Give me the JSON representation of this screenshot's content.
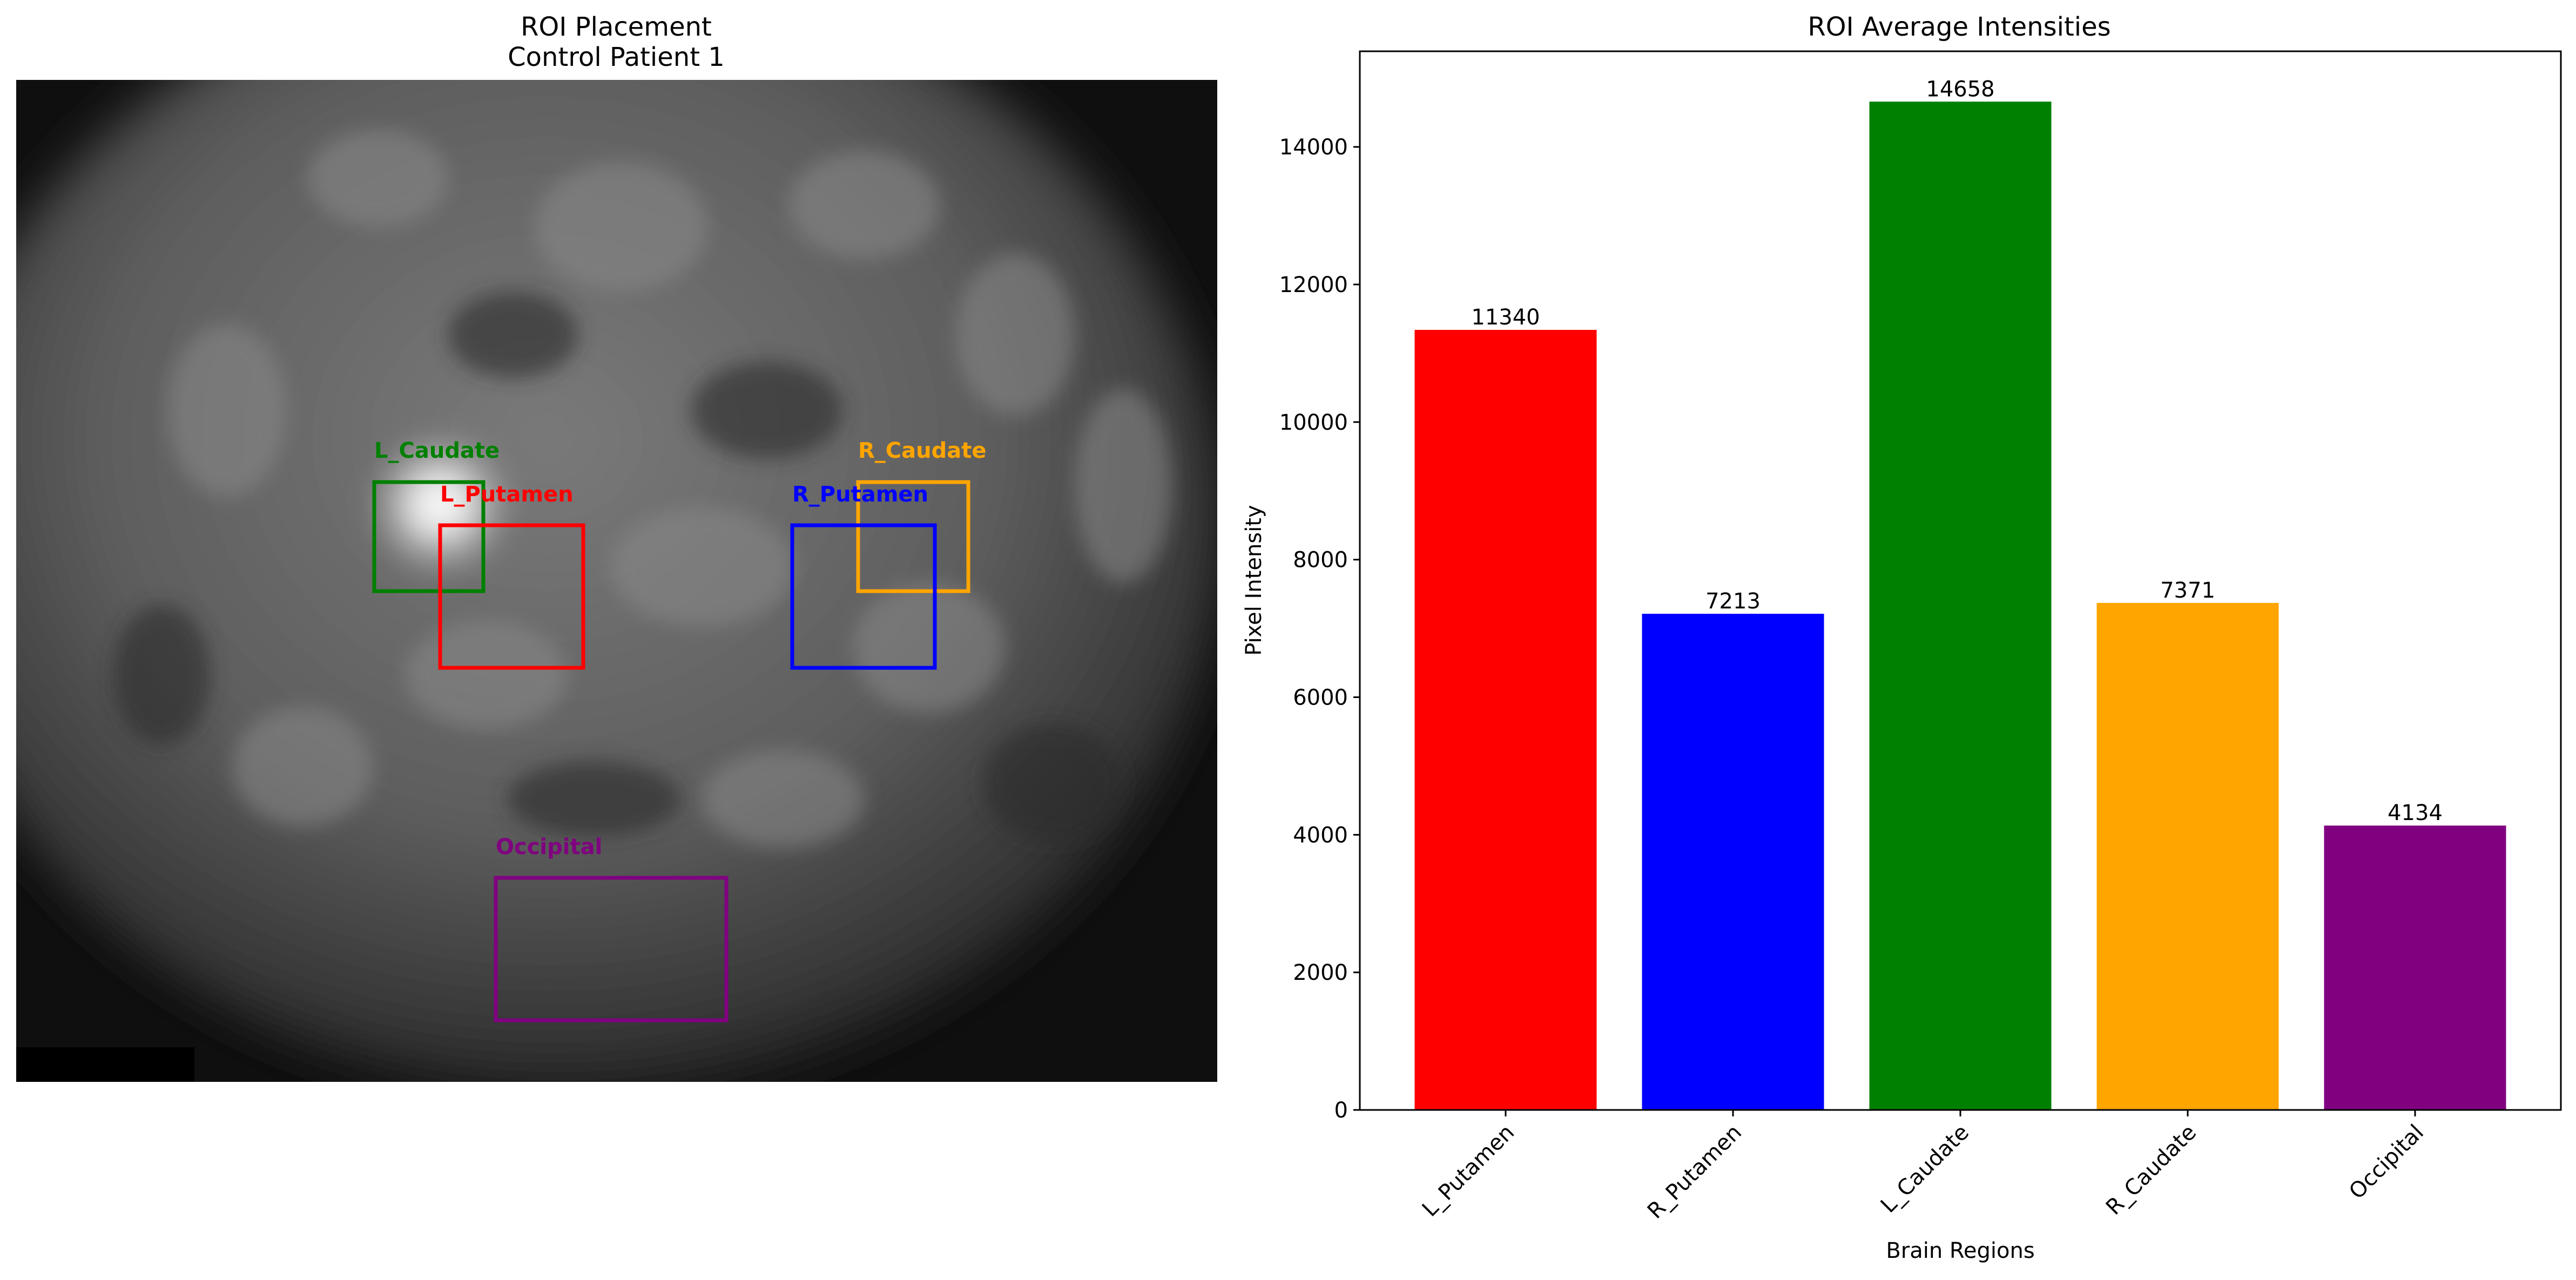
{
  "left_panel": {
    "title_line1": "ROI Placement",
    "title_line2": "Control Patient 1",
    "rois": [
      {
        "label": "L_Caudate",
        "color": "#008000"
      },
      {
        "label": "L_Putamen",
        "color": "#ff0000"
      },
      {
        "label": "R_Caudate",
        "color": "#ffa500"
      },
      {
        "label": "R_Putamen",
        "color": "#0000ff"
      },
      {
        "label": "Occipital",
        "color": "#800080"
      }
    ]
  },
  "chart_data": {
    "type": "bar",
    "title": "ROI Average Intensities",
    "xlabel": "Brain Regions",
    "ylabel": "Pixel Intensity",
    "categories": [
      "L_Putamen",
      "R_Putamen",
      "L_Caudate",
      "R_Caudate",
      "Occipital"
    ],
    "values": [
      11340,
      7213,
      14658,
      7371,
      4134
    ],
    "colors": [
      "#ff0000",
      "#0000ff",
      "#008000",
      "#ffa500",
      "#800080"
    ],
    "ylim": [
      0,
      15390
    ],
    "yticks": [
      0,
      2000,
      4000,
      6000,
      8000,
      10000,
      12000,
      14000
    ],
    "grid": false,
    "legend": "none"
  }
}
